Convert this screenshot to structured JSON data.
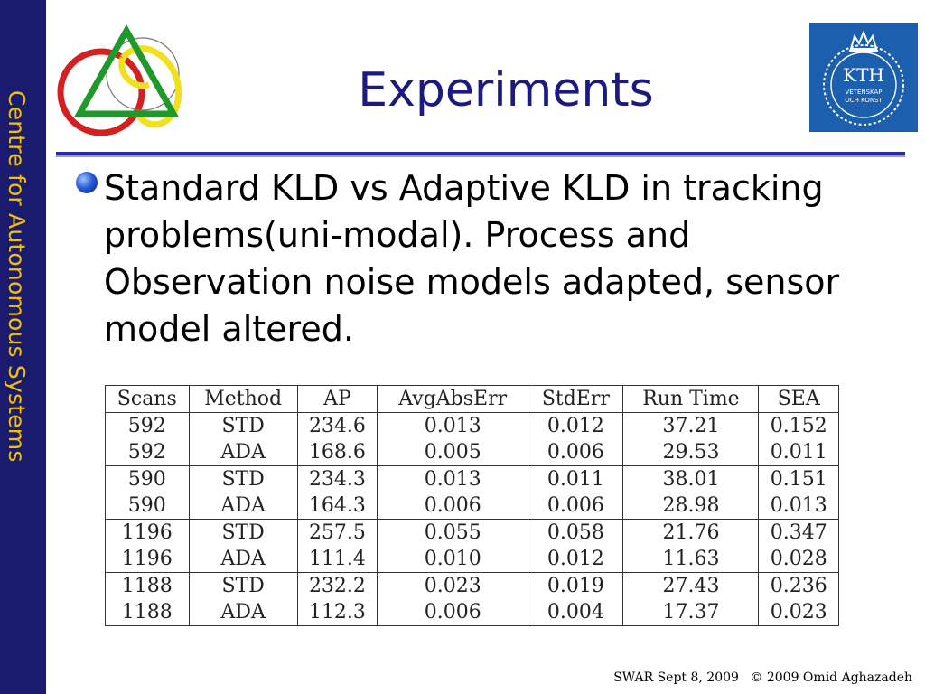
{
  "sidebar": {
    "label": "Centre for Autonomous Systems"
  },
  "slide": {
    "title": "Experiments"
  },
  "logo": {
    "kth_text": "KTH",
    "kth_sub1": "VETENSKAP",
    "kth_sub2": "OCH KONST",
    "kth_bg_color": "#1b5fae"
  },
  "bullet": {
    "icon": "bullet-dot-icon",
    "text": "Standard KLD vs Adaptive KLD in tracking problems(uni-modal). Process and Observation noise models adapted, sensor model altered."
  },
  "table": {
    "headers": [
      "Scans",
      "Method",
      "AP",
      "AvgAbsErr",
      "StdErr",
      "Run  Time",
      "SEA"
    ],
    "rows": [
      [
        "592",
        "STD",
        "234.6",
        "0.013",
        "0.012",
        "37.21",
        "0.152"
      ],
      [
        "592",
        "ADA",
        "168.6",
        "0.005",
        "0.006",
        "29.53",
        "0.011"
      ],
      [
        "590",
        "STD",
        "234.3",
        "0.013",
        "0.011",
        "38.01",
        "0.151"
      ],
      [
        "590",
        "ADA",
        "164.3",
        "0.006",
        "0.006",
        "28.98",
        "0.013"
      ],
      [
        "1196",
        "STD",
        "257.5",
        "0.055",
        "0.058",
        "21.76",
        "0.347"
      ],
      [
        "1196",
        "ADA",
        "111.4",
        "0.010",
        "0.012",
        "11.63",
        "0.028"
      ],
      [
        "1188",
        "STD",
        "232.2",
        "0.023",
        "0.019",
        "27.43",
        "0.236"
      ],
      [
        "1188",
        "ADA",
        "112.3",
        "0.006",
        "0.004",
        "17.37",
        "0.023"
      ]
    ]
  },
  "footer": {
    "event": "SWAR Sept 8, 2009",
    "copyright": "© 2009 Omid Aghazadeh"
  },
  "colors": {
    "sidebar_bg": "#1a1a6e",
    "sidebar_text": "#f2c100",
    "title": "#1a1a80",
    "divider": "#2a2aa0"
  }
}
